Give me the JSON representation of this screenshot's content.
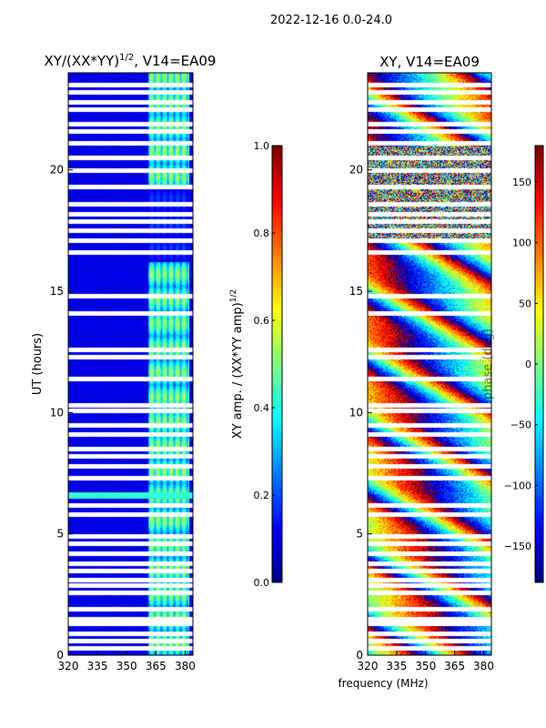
{
  "suptitle": "2022-12-16 0.0-24.0",
  "shared_xlabel": "frequency (MHz)",
  "colors": {
    "bad": "#ffffff",
    "low": "#00007f",
    "high": "#7f0000"
  },
  "chart_data": [
    {
      "type": "heatmap",
      "title": "XY/(XX*YY)",
      "title_exponent": "1/2",
      "title_suffix": ", V14=EA09",
      "xlabel": "",
      "ylabel": "UT (hours)",
      "xlim": [
        320,
        384
      ],
      "ylim": [
        0,
        24
      ],
      "x_ticks": [
        320,
        335,
        350,
        365,
        380
      ],
      "y_ticks": [
        0,
        5,
        10,
        15,
        20
      ],
      "colorbar": {
        "label": "XY amp. / (XX*YY amp)",
        "label_exponent": "1/2",
        "range": [
          0.0,
          1.0
        ],
        "ticks": [
          "0.0",
          "0.2",
          "0.4",
          "0.6",
          "0.8",
          "1.0"
        ],
        "colormap": "jet"
      },
      "features": {
        "background_level": 0.1,
        "high_coherence_band_mhz": [
          361,
          382
        ],
        "band_level": 0.45,
        "strong_row_hour": 6.6,
        "strong_row_level": 0.42,
        "flagged_hours": [
          0.3,
          0.6,
          0.9,
          1.3,
          1.5,
          1.9,
          2.6,
          2.9,
          3.1,
          3.5,
          3.8,
          4.2,
          4.6,
          4.9,
          5.8,
          6.2,
          7.3,
          7.8,
          8.2,
          8.5,
          9.1,
          9.5,
          10.1,
          10.3,
          11.4,
          12.3,
          12.6,
          14.1,
          14.8,
          16.6,
          17.1,
          17.5,
          17.9,
          18.2,
          18.6,
          19.3,
          20.0,
          20.5,
          21.1,
          21.6,
          21.9,
          22.5,
          22.8,
          23.2,
          23.5
        ]
      }
    },
    {
      "type": "heatmap",
      "title": "XY, V14=EA09",
      "xlabel": "",
      "ylabel": "",
      "xlim": [
        320,
        384
      ],
      "ylim": [
        0,
        24
      ],
      "x_ticks": [
        320,
        335,
        350,
        365,
        380
      ],
      "y_ticks": [
        0,
        5,
        10,
        15,
        20
      ],
      "colorbar": {
        "label": "phase (deg)",
        "range": [
          -180,
          180
        ],
        "ticks": [
          "−150",
          "−100",
          "−50",
          "0",
          "50",
          "100",
          "150"
        ],
        "colormap": "jet"
      },
      "features": {
        "phase_wraps_per_64mhz": 1.6,
        "noisy_hours": [
          17.0,
          21.0
        ],
        "flagged_hours": [
          0.3,
          0.6,
          0.9,
          1.3,
          1.5,
          1.9,
          2.6,
          2.9,
          3.1,
          3.5,
          3.8,
          4.2,
          4.6,
          4.9,
          5.8,
          6.2,
          7.3,
          7.8,
          8.2,
          8.5,
          9.1,
          9.5,
          10.1,
          10.3,
          11.4,
          12.3,
          12.6,
          14.1,
          14.8,
          16.6,
          17.1,
          17.5,
          17.9,
          18.2,
          18.6,
          19.3,
          20.0,
          20.5,
          21.1,
          21.6,
          21.9,
          22.5,
          22.8,
          23.2,
          23.5
        ]
      }
    }
  ]
}
